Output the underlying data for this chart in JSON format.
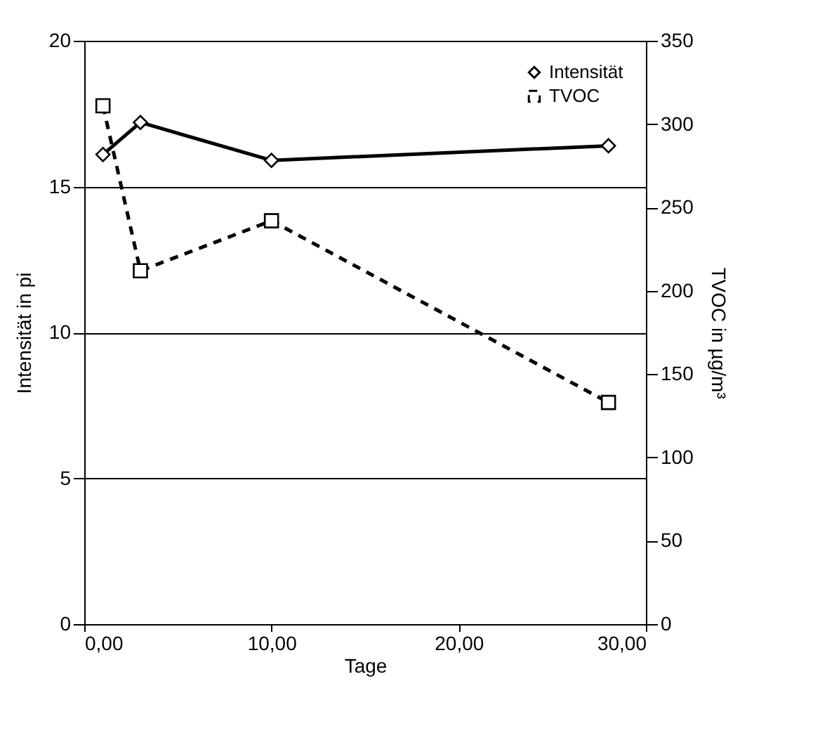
{
  "chart_data": {
    "type": "line",
    "xlabel": "Tage",
    "ylabel": "Intensität in pi",
    "y2label": "TVOC in µg/m³",
    "xlim": [
      0,
      30
    ],
    "xticks": [
      {
        "value": 0,
        "label": "0,00"
      },
      {
        "value": 10,
        "label": "10,00"
      },
      {
        "value": 20,
        "label": "20,00"
      },
      {
        "value": 30,
        "label": "30,00"
      }
    ],
    "ylim": [
      0,
      20
    ],
    "yticks": [
      0,
      5,
      10,
      15,
      20
    ],
    "y2lim": [
      0,
      350
    ],
    "y2ticks": [
      0,
      50,
      100,
      150,
      200,
      250,
      300,
      350
    ],
    "grid": "y",
    "legend": "top right",
    "series": [
      {
        "name": "Intensität",
        "color": "#000000",
        "x": [
          1,
          3,
          10,
          28
        ],
        "values": [
          16.1,
          17.2,
          15.9,
          16.4
        ],
        "marker": "diamond",
        "line_style": "solid"
      },
      {
        "name": "TVOC",
        "color": "#000000",
        "axis": "y2",
        "x": [
          1,
          3,
          10,
          28
        ],
        "values": [
          311,
          212,
          242,
          133
        ],
        "marker": "square",
        "line_style": "dashed"
      }
    ]
  }
}
